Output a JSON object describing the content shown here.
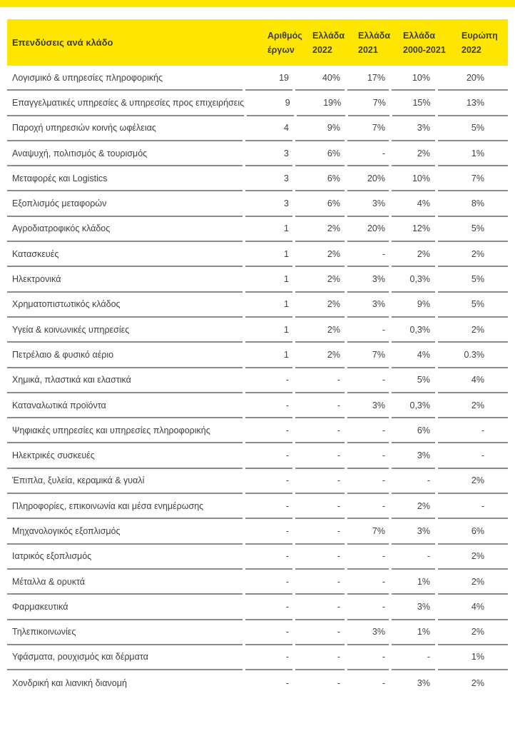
{
  "page": {
    "accent_yellow": "#FFE600",
    "text_color": "#404040",
    "separator_color": "#8C8C8C"
  },
  "table": {
    "title": "Επενδύσεις ανά κλάδο",
    "columns": [
      {
        "line1": "Αριθμός",
        "line2": "έργων"
      },
      {
        "line1": "Ελλάδα",
        "line2": "2022"
      },
      {
        "line1": "Ελλάδα",
        "line2": "2021"
      },
      {
        "line1": "Ελλάδα",
        "line2": "2000-2021"
      },
      {
        "line1": "Ευρώπη",
        "line2": "2022"
      }
    ],
    "rows": [
      {
        "sector": "Λογισμικό & υπηρεσίες πληροφορικής",
        "values": [
          "19",
          "40%",
          "17%",
          "10%",
          "20%"
        ]
      },
      {
        "sector": "Επαγγελματικές υπηρεσίες & υπηρεσίες προς επιχειρήσεις",
        "values": [
          "9",
          "19%",
          "7%",
          "15%",
          "13%"
        ]
      },
      {
        "sector": "Παροχή υπηρεσιών κοινής ωφέλειας",
        "values": [
          "4",
          "9%",
          "7%",
          "3%",
          "5%"
        ]
      },
      {
        "sector": "Αναψυχή, πολιτισμός & τουρισμός",
        "values": [
          "3",
          "6%",
          "-",
          "2%",
          "1%"
        ]
      },
      {
        "sector": "Μεταφορές και Logistics",
        "values": [
          "3",
          "6%",
          "20%",
          "10%",
          "7%"
        ]
      },
      {
        "sector": "Εξοπλισμός μεταφορών",
        "values": [
          "3",
          "6%",
          "3%",
          "4%",
          "8%"
        ]
      },
      {
        "sector": "Αγροδιατροφικός κλάδος",
        "values": [
          "1",
          "2%",
          "20%",
          "12%",
          "5%"
        ]
      },
      {
        "sector": "Κατασκευές",
        "values": [
          "1",
          "2%",
          "-",
          "2%",
          "2%"
        ]
      },
      {
        "sector": "Ηλεκτρονικά",
        "values": [
          "1",
          "2%",
          "3%",
          "0,3%",
          "5%"
        ]
      },
      {
        "sector": "Χρηματοπιστωτικός κλάδος",
        "values": [
          "1",
          "2%",
          "3%",
          "9%",
          "5%"
        ]
      },
      {
        "sector": "Υγεία & κοινωνικές υπηρεσίες",
        "values": [
          "1",
          "2%",
          "-",
          "0,3%",
          "2%"
        ]
      },
      {
        "sector": "Πετρέλαιο & φυσικό αέριο",
        "values": [
          "1",
          "2%",
          "7%",
          "4%",
          "0.3%"
        ]
      },
      {
        "sector": "Χημικά, πλαστικά και ελαστικά",
        "values": [
          "-",
          "-",
          "-",
          "5%",
          "4%"
        ]
      },
      {
        "sector": "Καταναλωτικά προϊόντα",
        "values": [
          "-",
          "-",
          "3%",
          "0,3%",
          "2%"
        ]
      },
      {
        "sector": "Ψηφιακές υπηρεσίες και υπηρεσίες πληροφορικής",
        "values": [
          "-",
          "-",
          "-",
          "6%",
          "-"
        ]
      },
      {
        "sector": "Ηλεκτρικές συσκευές",
        "values": [
          "-",
          "-",
          "-",
          "3%",
          "-"
        ]
      },
      {
        "sector": "Έπιπλα, ξυλεία, κεραμικά & γυαλί",
        "values": [
          "-",
          "-",
          "-",
          "-",
          "2%"
        ]
      },
      {
        "sector": "Πληροφορίες, επικοινωνία και μέσα ενημέρωσης",
        "values": [
          "-",
          "-",
          "-",
          "2%",
          "-"
        ]
      },
      {
        "sector": "Μηχανολογικός εξοπλισμός",
        "values": [
          "-",
          "-",
          "7%",
          "3%",
          "6%"
        ]
      },
      {
        "sector": "Ιατρικός εξοπλισμός",
        "values": [
          "-",
          "-",
          "-",
          "-",
          "2%"
        ]
      },
      {
        "sector": "Μέταλλα & ορυκτά",
        "values": [
          "-",
          "-",
          "-",
          "1%",
          "2%"
        ]
      },
      {
        "sector": "Φαρμακευτικά",
        "values": [
          "-",
          "-",
          "-",
          "3%",
          "4%"
        ]
      },
      {
        "sector": "Τηλεπικοινωνίες",
        "values": [
          "-",
          "-",
          "3%",
          "1%",
          "2%"
        ]
      },
      {
        "sector": "Υφάσματα, ρουχισμός και δέρματα",
        "values": [
          "-",
          "-",
          "-",
          "-",
          "1%"
        ]
      },
      {
        "sector": "Χονδρική και λιανική διανομή",
        "values": [
          "-",
          "-",
          "-",
          "3%",
          "2%"
        ]
      }
    ]
  }
}
